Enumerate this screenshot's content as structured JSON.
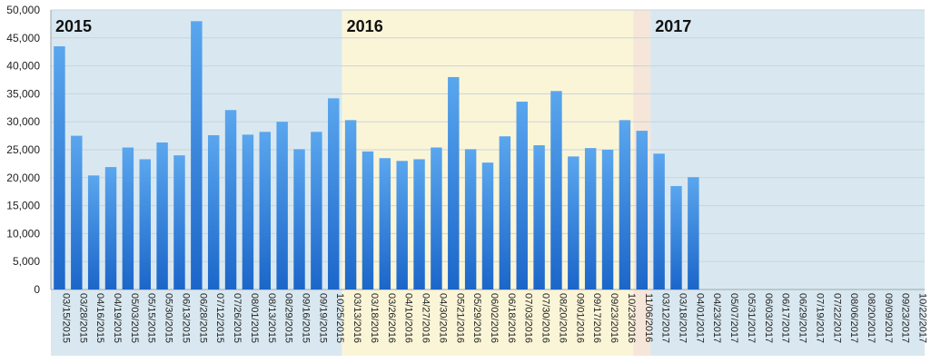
{
  "chart_data": {
    "type": "bar",
    "title": "",
    "xlabel": "",
    "ylabel": "",
    "ylim": [
      0,
      50000
    ],
    "yticks": [
      0,
      5000,
      10000,
      15000,
      20000,
      25000,
      30000,
      35000,
      40000,
      45000,
      50000
    ],
    "ytick_labels": [
      "0",
      "5,000",
      "10,000",
      "15,000",
      "20,000",
      "25,000",
      "30,000",
      "35,000",
      "40,000",
      "45,000",
      "50,000"
    ],
    "grid": true,
    "categories": [
      "03/15/2015",
      "03/28/2015",
      "04/16/2015",
      "04/19/2015",
      "05/03/2015",
      "05/15/2015",
      "05/30/2015",
      "06/13/2015",
      "06/28/2015",
      "07/12/2015",
      "07/26/2015",
      "08/01/2015",
      "08/13/2015",
      "08/29/2015",
      "09/16/2015",
      "09/19/2015",
      "10/25/2015",
      "03/13/2016",
      "03/18/2016",
      "03/26/2016",
      "04/10/2016",
      "04/27/2016",
      "04/30/2016",
      "05/21/2016",
      "05/29/2016",
      "06/02/2016",
      "06/18/2016",
      "07/03/2016",
      "07/30/2016",
      "08/20/2016",
      "09/01/2016",
      "09/17/2016",
      "09/23/2016",
      "10/23/2016",
      "11/06/2016",
      "03/12/2017",
      "03/18/2017",
      "04/01/2017",
      "04/23/2017",
      "05/07/2017",
      "05/31/2017",
      "06/03/2017",
      "06/17/2017",
      "06/29/2017",
      "07/19/2017",
      "07/22/2017",
      "08/06/2017",
      "08/20/2017",
      "09/09/2017",
      "09/23/2017",
      "10/22/2017"
    ],
    "values": [
      43500,
      27500,
      20400,
      21900,
      25400,
      23300,
      26300,
      24000,
      48000,
      27600,
      32100,
      27700,
      28200,
      30000,
      25100,
      28200,
      34200,
      30300,
      24700,
      23500,
      23000,
      23300,
      25400,
      38000,
      25100,
      22700,
      27400,
      33600,
      25800,
      35500,
      23800,
      25300,
      25000,
      30300,
      28400,
      24300,
      18500,
      20100,
      null,
      null,
      null,
      null,
      null,
      null,
      null,
      null,
      null,
      null,
      null,
      null,
      null
    ],
    "regions": [
      {
        "label": "2015",
        "start": 0,
        "end": 16,
        "color": "#d9e8f0"
      },
      {
        "label": "2016",
        "start": 17,
        "end": 33,
        "color": "#fbf5d8"
      },
      {
        "label": "",
        "start": 34,
        "end": 34,
        "color": "#f6e6d9"
      },
      {
        "label": "2017",
        "start": 35,
        "end": 50,
        "color": "#d9e8f0"
      }
    ],
    "bar_color_top": "#5aa6ee",
    "bar_color_bottom": "#1b66c9"
  }
}
